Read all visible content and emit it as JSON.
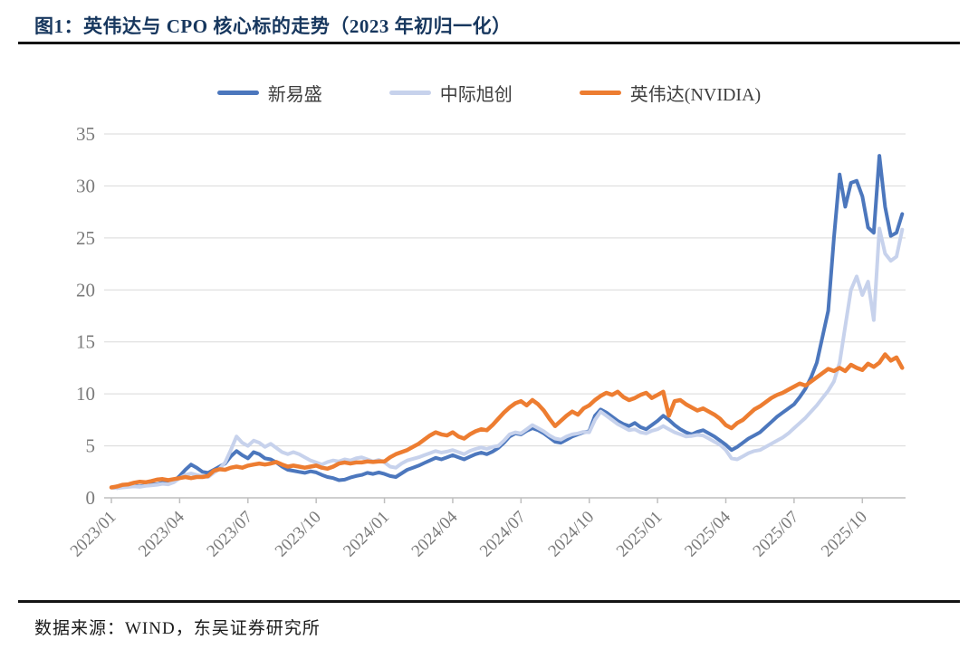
{
  "header": {
    "title": "图1：英伟达与 CPO 核心标的走势（2023 年初归一化）"
  },
  "footer": {
    "source": "数据来源：WIND，东吴证券研究所"
  },
  "colors": {
    "title_text": "#17375E",
    "axis_text": "#7a7a7a",
    "gridline": "#d9d9d9",
    "axis_line": "#bfbfbf",
    "legend_text": "#3d3d3d",
    "divider": "#141414"
  },
  "chart_data": {
    "type": "line",
    "title": "英伟达与 CPO 核心标的走势（2023 年初归一化）",
    "normalization": "2023 年初归一化 (indexed to 1.0 at Jan 2023)",
    "grid": true,
    "legend_position": "top",
    "x_axis": {
      "tick_labels": [
        "2023/01",
        "2023/04",
        "2023/07",
        "2023/10",
        "2024/01",
        "2024/04",
        "2024/07",
        "2024/10",
        "2025/01",
        "2025/04",
        "2025/07",
        "2025/10"
      ],
      "tick_interval_months": 3,
      "start_month": "2023/01",
      "end_month": "2025/12"
    },
    "y_axis": {
      "ticks": [
        0,
        5,
        10,
        15,
        20,
        25,
        30,
        35
      ],
      "range": [
        0,
        35
      ]
    },
    "sampling_months_per_point": 0.25,
    "series": [
      {
        "name": "新易盛",
        "color": "#4C77BD",
        "line_width": 4,
        "values": [
          1.0,
          0.95,
          1.05,
          1.1,
          1.15,
          1.1,
          1.2,
          1.3,
          1.3,
          1.45,
          1.4,
          1.6,
          2.1,
          2.7,
          3.2,
          2.9,
          2.5,
          2.4,
          2.7,
          3.0,
          3.3,
          4.0,
          4.5,
          4.1,
          3.8,
          4.4,
          4.2,
          3.8,
          3.7,
          3.4,
          3.0,
          2.7,
          2.6,
          2.5,
          2.4,
          2.55,
          2.45,
          2.2,
          2.0,
          1.9,
          1.7,
          1.75,
          1.95,
          2.1,
          2.2,
          2.4,
          2.3,
          2.45,
          2.3,
          2.1,
          2.0,
          2.35,
          2.7,
          2.9,
          3.1,
          3.35,
          3.6,
          3.85,
          3.7,
          3.9,
          4.1,
          3.9,
          3.7,
          3.95,
          4.2,
          4.35,
          4.2,
          4.45,
          4.8,
          5.3,
          5.9,
          6.2,
          6.1,
          6.45,
          6.7,
          6.5,
          6.2,
          5.8,
          5.4,
          5.3,
          5.6,
          5.9,
          6.1,
          6.3,
          6.4,
          7.9,
          8.5,
          8.2,
          7.8,
          7.4,
          7.1,
          6.9,
          7.2,
          6.8,
          6.6,
          7.0,
          7.4,
          7.9,
          7.5,
          7.0,
          6.6,
          6.3,
          6.1,
          6.35,
          6.5,
          6.2,
          5.9,
          5.5,
          5.1,
          4.6,
          4.9,
          5.3,
          5.7,
          6.0,
          6.3,
          6.8,
          7.3,
          7.8,
          8.2,
          8.6,
          9.0,
          9.7,
          10.5,
          11.6,
          13.0,
          15.5,
          18.0,
          25.0,
          31.1,
          28.0,
          30.3,
          30.5,
          29.0,
          26.0,
          25.5,
          32.9,
          28.0,
          25.2,
          25.5,
          27.3
        ]
      },
      {
        "name": "中际旭创",
        "color": "#C7D2EC",
        "line_width": 4,
        "values": [
          1.0,
          0.95,
          1.0,
          1.05,
          1.1,
          1.05,
          1.15,
          1.2,
          1.25,
          1.35,
          1.3,
          1.5,
          1.9,
          2.2,
          2.35,
          2.2,
          2.1,
          2.0,
          2.4,
          2.8,
          3.4,
          4.6,
          5.9,
          5.3,
          5.0,
          5.5,
          5.3,
          4.9,
          5.2,
          4.8,
          4.4,
          4.2,
          4.4,
          4.2,
          3.9,
          3.6,
          3.4,
          3.2,
          3.45,
          3.6,
          3.5,
          3.7,
          3.6,
          3.8,
          3.9,
          3.7,
          3.5,
          3.65,
          3.4,
          3.0,
          2.9,
          3.3,
          3.6,
          3.75,
          3.9,
          4.1,
          4.3,
          4.5,
          4.35,
          4.45,
          4.6,
          4.4,
          4.2,
          4.5,
          4.7,
          4.85,
          4.7,
          4.9,
          5.0,
          5.5,
          6.1,
          6.3,
          6.2,
          6.6,
          7.0,
          6.7,
          6.4,
          6.0,
          5.7,
          5.6,
          5.9,
          6.1,
          6.2,
          6.35,
          6.3,
          7.5,
          8.3,
          7.9,
          7.5,
          7.1,
          6.8,
          6.5,
          6.6,
          6.3,
          6.2,
          6.45,
          6.6,
          6.9,
          6.6,
          6.3,
          6.1,
          5.9,
          5.95,
          6.05,
          6.0,
          5.7,
          5.4,
          5.1,
          4.6,
          3.8,
          3.7,
          4.0,
          4.3,
          4.5,
          4.6,
          4.9,
          5.2,
          5.5,
          5.8,
          6.2,
          6.7,
          7.2,
          7.7,
          8.3,
          8.9,
          9.6,
          10.3,
          11.2,
          13.0,
          16.5,
          20.0,
          21.3,
          19.5,
          20.8,
          17.1,
          25.9,
          23.5,
          22.8,
          23.2,
          25.8
        ]
      },
      {
        "name": "英伟达(NVIDIA)",
        "color": "#ED7D31",
        "line_width": 4.5,
        "values": [
          1.0,
          1.1,
          1.25,
          1.3,
          1.45,
          1.55,
          1.5,
          1.6,
          1.75,
          1.8,
          1.7,
          1.8,
          1.9,
          2.0,
          1.9,
          2.0,
          2.0,
          2.1,
          2.6,
          2.75,
          2.7,
          2.9,
          3.0,
          2.9,
          3.1,
          3.2,
          3.3,
          3.2,
          3.3,
          3.45,
          3.2,
          3.0,
          3.1,
          3.0,
          2.9,
          3.0,
          3.1,
          2.9,
          2.8,
          3.0,
          3.3,
          3.4,
          3.3,
          3.4,
          3.4,
          3.5,
          3.45,
          3.5,
          3.5,
          3.9,
          4.2,
          4.4,
          4.6,
          4.9,
          5.2,
          5.6,
          6.0,
          6.3,
          6.1,
          6.0,
          6.3,
          5.9,
          5.7,
          6.1,
          6.4,
          6.6,
          6.5,
          7.0,
          7.6,
          8.2,
          8.7,
          9.1,
          9.3,
          8.9,
          9.4,
          9.0,
          8.4,
          7.6,
          6.9,
          7.4,
          7.9,
          8.3,
          8.0,
          8.6,
          8.9,
          9.4,
          9.8,
          10.1,
          9.9,
          10.2,
          9.7,
          9.4,
          9.6,
          9.9,
          10.1,
          9.6,
          9.9,
          10.2,
          7.9,
          9.3,
          9.4,
          9.0,
          8.7,
          8.4,
          8.6,
          8.3,
          8.0,
          7.6,
          7.0,
          6.7,
          7.2,
          7.5,
          8.0,
          8.5,
          8.8,
          9.2,
          9.6,
          9.9,
          10.1,
          10.4,
          10.7,
          11.0,
          10.8,
          11.2,
          11.6,
          12.0,
          12.4,
          12.2,
          12.5,
          12.2,
          12.8,
          12.5,
          12.3,
          12.9,
          12.6,
          13.0,
          13.8,
          13.2,
          13.5,
          12.5
        ]
      }
    ]
  }
}
